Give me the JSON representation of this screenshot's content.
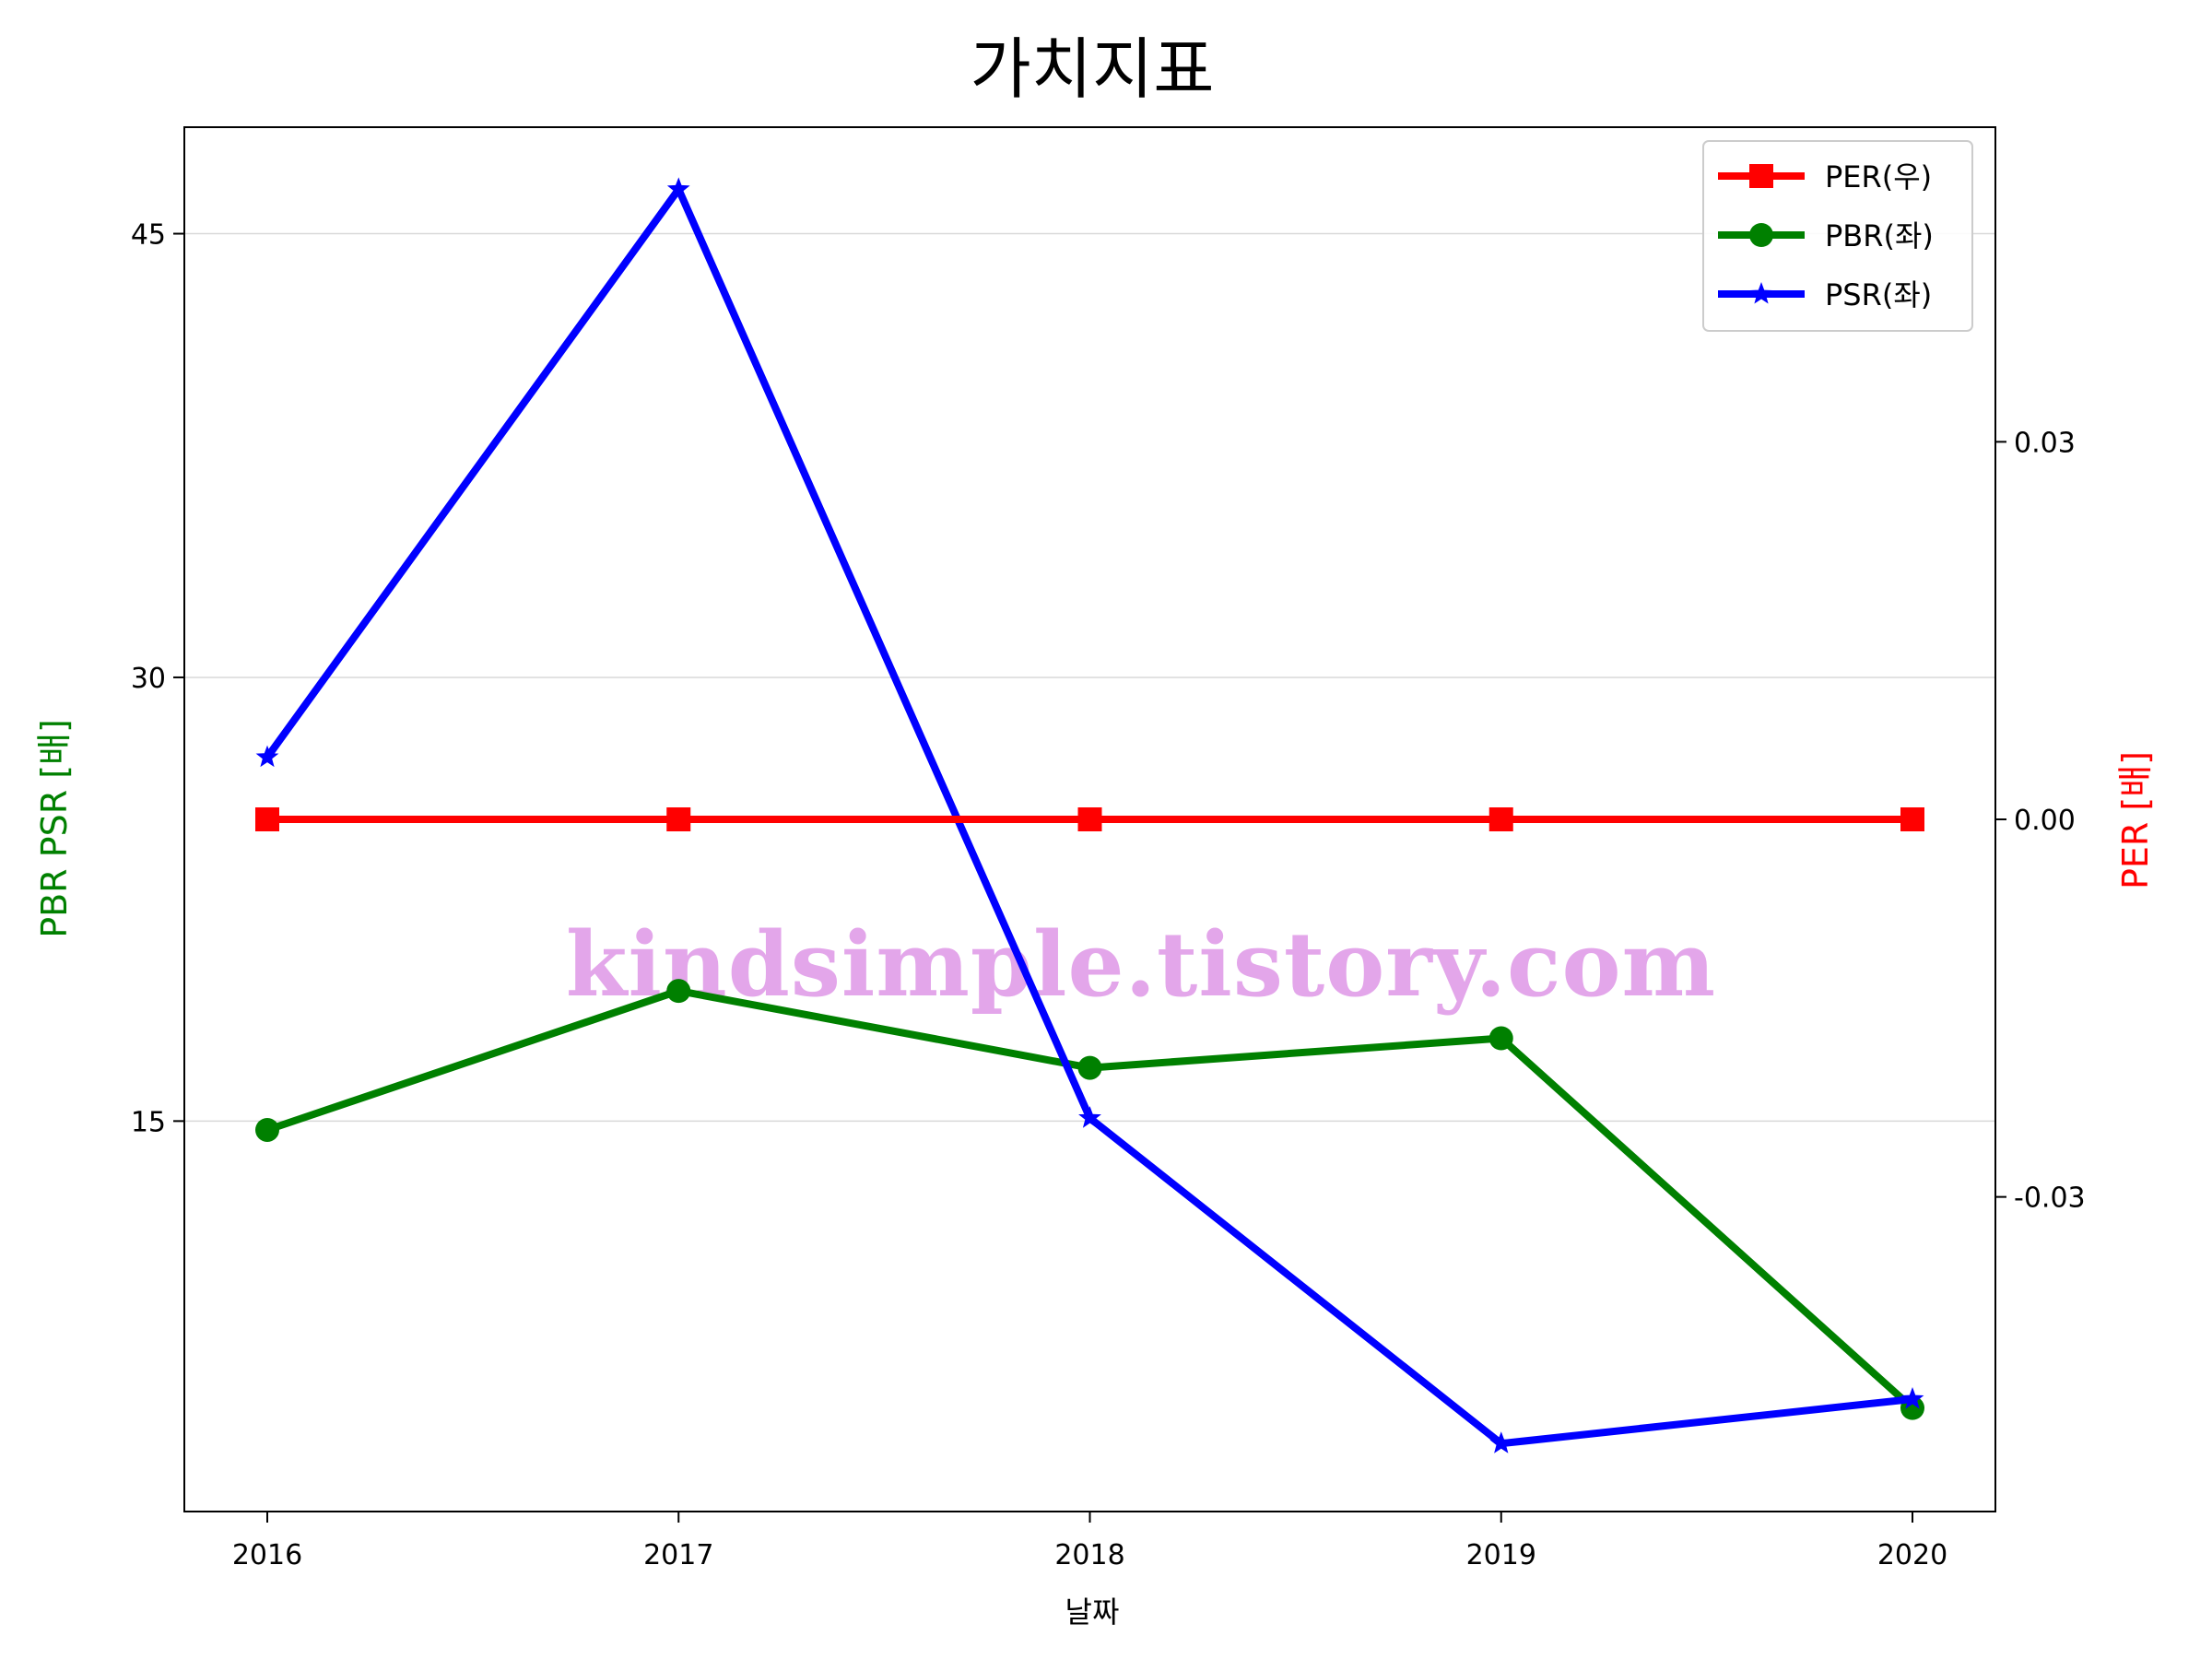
{
  "chart_data": {
    "type": "line",
    "title": "가치지표",
    "xlabel": "날짜",
    "ylabel_left": "PBR PSR [배]",
    "ylabel_right": "PER [배]",
    "x": [
      "2016",
      "2017",
      "2018",
      "2019",
      "2020"
    ],
    "series": [
      {
        "name": "PER(우)",
        "axis": "right",
        "color": "#ff0000",
        "marker": "square",
        "values": [
          0,
          0,
          0,
          0,
          0
        ]
      },
      {
        "name": "PBR(좌)",
        "axis": "left",
        "color": "#008000",
        "marker": "circle",
        "values": [
          14.7,
          19.4,
          16.8,
          17.8,
          5.3
        ]
      },
      {
        "name": "PSR(좌)",
        "axis": "left",
        "color": "#0000ff",
        "marker": "star",
        "values": [
          27.3,
          46.5,
          15.1,
          4.1,
          5.6
        ]
      }
    ],
    "yleft_ticks": [
      15,
      30,
      45
    ],
    "yleft_tick_labels": [
      "15",
      "30",
      "45"
    ],
    "yleft_lim": [
      1.8,
      48.6
    ],
    "yright_ticks": [
      -0.03,
      0.0,
      0.03
    ],
    "yright_tick_labels": [
      "-0.03",
      "0.00",
      "0.03"
    ],
    "yright_lim": [
      -0.055,
      0.055
    ],
    "grid": "horizontal",
    "legend_position": "top-right",
    "watermark": "kindsimple.tistory.com",
    "colors": {
      "left_label": "#008000",
      "right_label": "#ff0000",
      "watermark": "#e3a6ea",
      "grid": "#d9d9d9"
    }
  }
}
